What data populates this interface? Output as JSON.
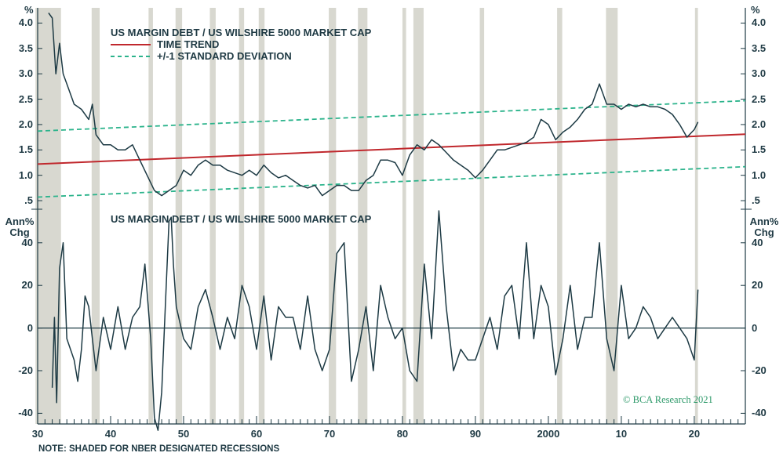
{
  "chart_data": [
    {
      "type": "line",
      "title": "US MARGIN DEBT / US WILSHIRE 5000 MARKET CAP",
      "ylabel": "%",
      "ylim": [
        0.3,
        4.3
      ],
      "yticks": [
        "4.0",
        "3.5",
        "3.0",
        "2.5",
        "2.0",
        "1.5",
        "1.0",
        ".5"
      ],
      "ytick_values": [
        4.0,
        3.5,
        3.0,
        2.5,
        2.0,
        1.5,
        1.0,
        0.5
      ],
      "legend": [
        {
          "label": "US MARGIN DEBT / US WILSHIRE 5000 MARKET CAP",
          "style": "solid",
          "color": "#1d3a44"
        },
        {
          "label": "TIME TREND",
          "style": "solid",
          "color": "#c0282d"
        },
        {
          "label": "+/-1 STANDARD DEVIATION",
          "style": "dashed",
          "color": "#2bb38b"
        }
      ],
      "legend_position": "top-left",
      "series": [
        {
          "name": "US MARGIN DEBT / US WILSHIRE 5000 MARKET CAP",
          "color": "#1d3a44",
          "x": [
            1931.5,
            1932.0,
            1932.5,
            1933.0,
            1933.5,
            1934.0,
            1935.0,
            1936.0,
            1937.0,
            1937.5,
            1938.0,
            1939.0,
            1940.0,
            1941.0,
            1942.0,
            1943.0,
            1944.0,
            1945.0,
            1946.0,
            1947.0,
            1948.0,
            1949.0,
            1950.0,
            1951.0,
            1952.0,
            1953.0,
            1954.0,
            1955.0,
            1956.0,
            1957.0,
            1958.0,
            1959.0,
            1960.0,
            1961.0,
            1962.0,
            1963.0,
            1964.0,
            1965.0,
            1966.0,
            1967.0,
            1968.0,
            1969.0,
            1970.0,
            1971.0,
            1972.0,
            1973.0,
            1974.0,
            1975.0,
            1976.0,
            1977.0,
            1978.0,
            1979.0,
            1980.0,
            1981.0,
            1982.0,
            1983.0,
            1984.0,
            1985.0,
            1986.0,
            1987.0,
            1988.0,
            1989.0,
            1990.0,
            1991.0,
            1992.0,
            1993.0,
            1994.0,
            1995.0,
            1996.0,
            1997.0,
            1998.0,
            1999.0,
            2000.0,
            2001.0,
            2002.0,
            2003.0,
            2004.0,
            2005.0,
            2006.0,
            2007.0,
            2007.5,
            2008.0,
            2009.0,
            2010.0,
            2011.0,
            2012.0,
            2013.0,
            2014.0,
            2015.0,
            2016.0,
            2017.0,
            2018.0,
            2019.0,
            2020.0,
            2020.5
          ],
          "values": [
            4.2,
            4.1,
            3.0,
            3.6,
            3.0,
            2.8,
            2.4,
            2.3,
            2.1,
            2.4,
            1.8,
            1.6,
            1.6,
            1.5,
            1.5,
            1.6,
            1.3,
            1.0,
            0.7,
            0.6,
            0.7,
            0.8,
            1.1,
            1.0,
            1.2,
            1.3,
            1.2,
            1.2,
            1.1,
            1.05,
            1.0,
            1.1,
            1.0,
            1.2,
            1.05,
            0.95,
            1.0,
            0.9,
            0.8,
            0.75,
            0.8,
            0.6,
            0.7,
            0.8,
            0.8,
            0.7,
            0.7,
            0.9,
            1.0,
            1.3,
            1.3,
            1.25,
            1.0,
            1.4,
            1.6,
            1.5,
            1.7,
            1.6,
            1.45,
            1.3,
            1.2,
            1.1,
            0.95,
            1.1,
            1.3,
            1.5,
            1.5,
            1.55,
            1.6,
            1.65,
            1.75,
            2.1,
            2.0,
            1.7,
            1.85,
            1.95,
            2.1,
            2.3,
            2.4,
            2.8,
            2.6,
            2.4,
            2.4,
            2.3,
            2.4,
            2.35,
            2.4,
            2.35,
            2.35,
            2.3,
            2.2,
            2.0,
            1.75,
            1.9,
            2.05
          ]
        },
        {
          "name": "TIME TREND",
          "color": "#c0282d",
          "x": [
            1930.0,
            2027.0
          ],
          "values": [
            1.22,
            1.81
          ]
        },
        {
          "name": "+1 STANDARD DEVIATION",
          "color": "#2bb38b",
          "x": [
            1930.0,
            2027.0
          ],
          "values": [
            1.87,
            2.47
          ]
        },
        {
          "name": "-1 STANDARD DEVIATION",
          "color": "#2bb38b",
          "x": [
            1930.0,
            2027.0
          ],
          "values": [
            0.57,
            1.17
          ]
        }
      ]
    },
    {
      "type": "line",
      "title": "US MARGIN DEBT / US WILSHIRE 5000 MARKET CAP",
      "ylabel": "Ann% Chg",
      "ylim": [
        -45,
        55
      ],
      "yticks": [
        "40",
        "20",
        "0",
        "-20",
        "-40"
      ],
      "ytick_values": [
        40,
        20,
        0,
        -20,
        -40
      ],
      "series": [
        {
          "name": "US MARGIN DEBT / US WILSHIRE 5000 MARKET CAP",
          "color": "#1d3a44",
          "x": [
            1932.0,
            1932.3,
            1932.6,
            1933.0,
            1933.5,
            1934.0,
            1935.0,
            1935.5,
            1936.0,
            1936.5,
            1937.0,
            1938.0,
            1939.0,
            1940.0,
            1941.0,
            1942.0,
            1943.0,
            1944.0,
            1944.7,
            1945.5,
            1946.0,
            1946.5,
            1947.0,
            1947.5,
            1948.0,
            1948.3,
            1948.6,
            1949.0,
            1950.0,
            1951.0,
            1952.0,
            1953.0,
            1954.0,
            1955.0,
            1956.0,
            1957.0,
            1958.0,
            1959.0,
            1960.0,
            1961.0,
            1962.0,
            1963.0,
            1964.0,
            1965.0,
            1966.0,
            1967.0,
            1968.0,
            1969.0,
            1970.0,
            1971.0,
            1972.0,
            1973.0,
            1974.0,
            1975.0,
            1976.0,
            1977.0,
            1978.0,
            1979.0,
            1980.0,
            1981.0,
            1982.0,
            1983.0,
            1984.0,
            1985.0,
            1986.0,
            1987.0,
            1988.0,
            1989.0,
            1990.0,
            1991.0,
            1992.0,
            1993.0,
            1994.0,
            1995.0,
            1996.0,
            1997.0,
            1998.0,
            1999.0,
            2000.0,
            2001.0,
            2002.0,
            2003.0,
            2004.0,
            2005.0,
            2006.0,
            2007.0,
            2008.0,
            2009.0,
            2010.0,
            2011.0,
            2012.0,
            2013.0,
            2014.0,
            2015.0,
            2016.0,
            2017.0,
            2018.0,
            2019.0,
            2020.0,
            2020.5
          ],
          "values": [
            -28,
            5,
            -35,
            28,
            40,
            -5,
            -15,
            -25,
            -10,
            15,
            10,
            -20,
            5,
            -10,
            10,
            -10,
            5,
            10,
            30,
            -5,
            -42,
            -48,
            -30,
            10,
            50,
            52,
            30,
            10,
            -5,
            -10,
            10,
            18,
            5,
            -10,
            5,
            -5,
            20,
            10,
            -10,
            15,
            -15,
            10,
            5,
            5,
            -10,
            15,
            -10,
            -20,
            -10,
            35,
            40,
            -25,
            -10,
            10,
            -20,
            20,
            5,
            -5,
            0,
            -20,
            -25,
            30,
            -5,
            55,
            10,
            -20,
            -10,
            -15,
            -15,
            -5,
            5,
            -10,
            15,
            20,
            -5,
            40,
            -5,
            20,
            10,
            -22,
            -5,
            20,
            -10,
            5,
            5,
            40,
            -5,
            -20,
            20,
            -5,
            0,
            10,
            5,
            -5,
            0,
            5,
            0,
            -5,
            -15,
            18
          ]
        }
      ]
    }
  ],
  "x_axis": {
    "ticks": [
      "30",
      "40",
      "50",
      "60",
      "70",
      "80",
      "90",
      "2000",
      "10",
      "20"
    ],
    "tick_years": [
      1930,
      1940,
      1950,
      1960,
      1970,
      1980,
      1990,
      2000,
      2010,
      2020
    ],
    "xlim": [
      1930,
      2027
    ]
  },
  "recessions": [
    [
      1929.7,
      1933.2
    ],
    [
      1937.4,
      1938.5
    ],
    [
      1945.2,
      1945.8
    ],
    [
      1948.9,
      1949.8
    ],
    [
      1953.6,
      1954.4
    ],
    [
      1957.6,
      1958.3
    ],
    [
      1960.3,
      1961.1
    ],
    [
      1969.9,
      1970.9
    ],
    [
      1973.9,
      1975.2
    ],
    [
      1980.0,
      1980.5
    ],
    [
      1981.5,
      1982.9
    ],
    [
      1990.6,
      1991.2
    ],
    [
      2001.2,
      2001.9
    ],
    [
      2007.9,
      2009.5
    ],
    [
      2020.1,
      2020.5
    ]
  ],
  "notes": {
    "footnote": "NOTE: SHADED FOR NBER DESIGNATED RECESSIONS",
    "credit": "© BCA Research 2021"
  },
  "colors": {
    "recession": "#d8d8d0",
    "series": "#1d3a44",
    "trend": "#c0282d",
    "band": "#2bb38b",
    "axis": "#1d3a44"
  }
}
